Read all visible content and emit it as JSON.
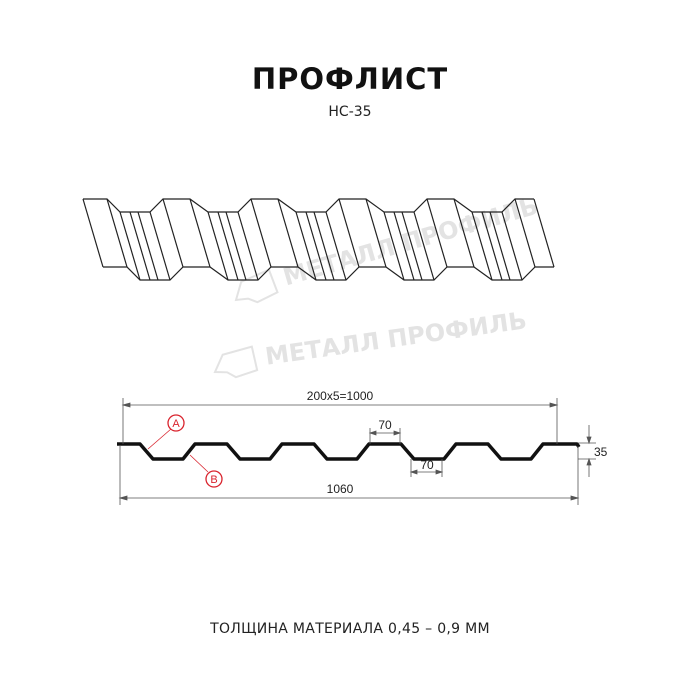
{
  "header": {
    "title": "ПРОФЛИСТ",
    "subtitle": "НС-35"
  },
  "watermark": {
    "text": "МЕТАЛЛ ПРОФИЛЬ",
    "color": "#e3e3e3"
  },
  "profile_drawing": {
    "pitch_dimension": "200x5=1000",
    "total_width": "1060",
    "top_flange_width": "70",
    "bottom_flange_width": "70",
    "height": "35",
    "marker_a": "A",
    "marker_b": "B",
    "marker_color": "#d9232d",
    "profile_color": "#111111"
  },
  "footer": {
    "thickness_text": "ТОЛЩИНА МАТЕРИАЛА 0,45 – 0,9 ММ"
  }
}
